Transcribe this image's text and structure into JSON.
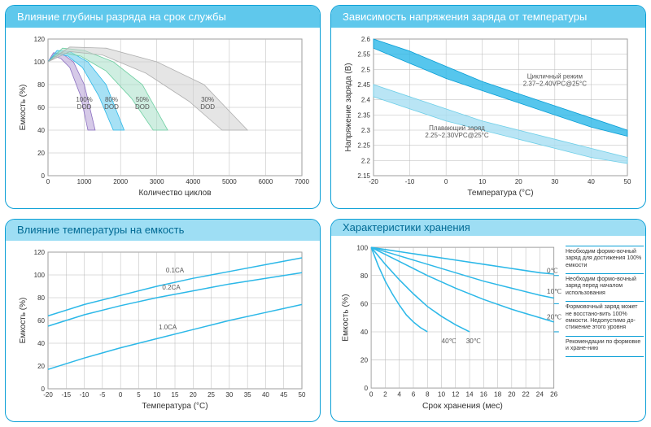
{
  "colors": {
    "accent": "#2cb8e8",
    "header_bg": "#5fc8ec",
    "header_light_bg": "#9edef4",
    "header_text": "#ffffff",
    "header_text_dark": "#006a94",
    "border": "#0a9fd6",
    "grid": "#b8b8b8",
    "axis": "#666666",
    "text": "#333333"
  },
  "chart1": {
    "type": "line",
    "title": "Влияние глубины разряда на срок службы",
    "xlabel": "Количество циклов",
    "ylabel": "Емкость (%)",
    "xlim": [
      0,
      7000
    ],
    "xtick_step": 1000,
    "ylim": [
      0,
      120
    ],
    "ytick_step": 20,
    "title_fontsize": 13,
    "label_fontsize": 10,
    "tick_fontsize": 8,
    "background_color": "#ffffff",
    "grid_color": "#b8b8b8",
    "series": [
      {
        "name": "100% DOD",
        "label": "100%\nDOD",
        "label_x": 1000,
        "label_y": 65,
        "fill": "#b49fd6",
        "fill_opacity": 0.55,
        "stroke": "#8b6fc0",
        "top": [
          [
            0,
            100
          ],
          [
            150,
            108
          ],
          [
            400,
            107
          ],
          [
            700,
            100
          ],
          [
            1000,
            80
          ],
          [
            1300,
            40
          ]
        ],
        "bottom": [
          [
            0,
            100
          ],
          [
            150,
            105
          ],
          [
            350,
            103
          ],
          [
            600,
            95
          ],
          [
            900,
            70
          ],
          [
            1100,
            40
          ]
        ]
      },
      {
        "name": "80% DOD",
        "label": "80%\nDOD",
        "label_x": 1750,
        "label_y": 65,
        "fill": "#5fc8ec",
        "fill_opacity": 0.55,
        "stroke": "#2cb8e8",
        "top": [
          [
            0,
            100
          ],
          [
            250,
            110
          ],
          [
            600,
            109
          ],
          [
            1100,
            100
          ],
          [
            1600,
            80
          ],
          [
            2100,
            40
          ]
        ],
        "bottom": [
          [
            0,
            100
          ],
          [
            250,
            107
          ],
          [
            550,
            105
          ],
          [
            950,
            95
          ],
          [
            1400,
            70
          ],
          [
            1800,
            40
          ]
        ]
      },
      {
        "name": "50% DOD",
        "label": "50%\nDOD",
        "label_x": 2600,
        "label_y": 65,
        "fill": "#a8e0c8",
        "fill_opacity": 0.55,
        "stroke": "#6fcfa2",
        "top": [
          [
            0,
            100
          ],
          [
            400,
            112
          ],
          [
            1000,
            110
          ],
          [
            1800,
            100
          ],
          [
            2600,
            80
          ],
          [
            3300,
            40
          ]
        ],
        "bottom": [
          [
            0,
            100
          ],
          [
            400,
            108
          ],
          [
            900,
            105
          ],
          [
            1600,
            92
          ],
          [
            2300,
            68
          ],
          [
            2900,
            40
          ]
        ]
      },
      {
        "name": "30% DOD",
        "label": "30%\nDOD",
        "label_x": 4400,
        "label_y": 65,
        "fill": "#d0d0d0",
        "fill_opacity": 0.55,
        "stroke": "#b0b0b0",
        "top": [
          [
            0,
            100
          ],
          [
            600,
            113
          ],
          [
            1600,
            112
          ],
          [
            3000,
            100
          ],
          [
            4300,
            80
          ],
          [
            5500,
            40
          ]
        ],
        "bottom": [
          [
            0,
            100
          ],
          [
            600,
            109
          ],
          [
            1500,
            106
          ],
          [
            2700,
            90
          ],
          [
            3900,
            65
          ],
          [
            4800,
            40
          ]
        ]
      }
    ]
  },
  "chart2": {
    "type": "line",
    "title": "Зависимость напряжения заряда от температуры",
    "xlabel": "Температура (°C)",
    "ylabel": "Напряжение заряда (В)",
    "xlim": [
      -20,
      50
    ],
    "xtick_step": 10,
    "ylim": [
      2.15,
      2.6
    ],
    "ytick_step": 0.05,
    "title_fontsize": 13,
    "label_fontsize": 10,
    "tick_fontsize": 8,
    "grid_color": "#b8b8b8",
    "series": [
      {
        "name": "cycle",
        "label": "Цикличный режим\n2.37~2.40VPC@25°C",
        "label_x": 30,
        "label_y": 2.47,
        "fill": "#2cb8e8",
        "fill_opacity": 0.8,
        "stroke": "#0a9fd6",
        "top": [
          [
            -20,
            2.6
          ],
          [
            -10,
            2.56
          ],
          [
            0,
            2.51
          ],
          [
            10,
            2.46
          ],
          [
            20,
            2.42
          ],
          [
            30,
            2.38
          ],
          [
            40,
            2.34
          ],
          [
            50,
            2.3
          ]
        ],
        "bottom": [
          [
            -20,
            2.57
          ],
          [
            -10,
            2.52
          ],
          [
            0,
            2.47
          ],
          [
            10,
            2.43
          ],
          [
            20,
            2.39
          ],
          [
            30,
            2.35
          ],
          [
            40,
            2.31
          ],
          [
            50,
            2.28
          ]
        ]
      },
      {
        "name": "float",
        "label": "Плавающий заряд\n2.25~2.30VPC@25°C",
        "label_x": 3,
        "label_y": 2.3,
        "fill": "#a8dff2",
        "fill_opacity": 0.8,
        "stroke": "#6fcfe8",
        "top": [
          [
            -20,
            2.45
          ],
          [
            -10,
            2.41
          ],
          [
            0,
            2.37
          ],
          [
            10,
            2.33
          ],
          [
            20,
            2.3
          ],
          [
            30,
            2.27
          ],
          [
            40,
            2.24
          ],
          [
            50,
            2.21
          ]
        ],
        "bottom": [
          [
            -20,
            2.41
          ],
          [
            -10,
            2.37
          ],
          [
            0,
            2.33
          ],
          [
            10,
            2.3
          ],
          [
            20,
            2.27
          ],
          [
            30,
            2.24
          ],
          [
            40,
            2.21
          ],
          [
            50,
            2.19
          ]
        ]
      }
    ]
  },
  "chart3": {
    "type": "line",
    "title": "Влияние температуры на емкость",
    "xlabel": "Температура (°C)",
    "ylabel": "Емкость (%)",
    "xlim": [
      -20,
      50
    ],
    "xtick_step": 5,
    "ylim": [
      0,
      120
    ],
    "ytick_step": 20,
    "title_fontsize": 13,
    "label_fontsize": 10,
    "tick_fontsize": 8,
    "grid_color": "#b8b8b8",
    "line_color": "#2cb8e8",
    "line_width": 1.5,
    "series": [
      {
        "name": "0.1CA",
        "label": "0.1CA",
        "label_x": 15,
        "label_y": 102,
        "points": [
          [
            -20,
            64
          ],
          [
            -10,
            74
          ],
          [
            0,
            82
          ],
          [
            10,
            90
          ],
          [
            20,
            97
          ],
          [
            25,
            100
          ],
          [
            30,
            103
          ],
          [
            40,
            109
          ],
          [
            50,
            115
          ]
        ]
      },
      {
        "name": "0.2CA",
        "label": "0.2CA",
        "label_x": 14,
        "label_y": 87,
        "points": [
          [
            -20,
            55
          ],
          [
            -10,
            65
          ],
          [
            0,
            73
          ],
          [
            10,
            80
          ],
          [
            20,
            86
          ],
          [
            25,
            89
          ],
          [
            30,
            92
          ],
          [
            40,
            97
          ],
          [
            50,
            102
          ]
        ]
      },
      {
        "name": "1.0CA",
        "label": "1.0CA",
        "label_x": 13,
        "label_y": 52,
        "points": [
          [
            -20,
            17
          ],
          [
            -10,
            27
          ],
          [
            0,
            36
          ],
          [
            10,
            44
          ],
          [
            20,
            52
          ],
          [
            25,
            56
          ],
          [
            30,
            60
          ],
          [
            40,
            67
          ],
          [
            50,
            74
          ]
        ]
      }
    ]
  },
  "chart4": {
    "type": "line",
    "title": "Характеристики хранения",
    "xlabel": "Срок хранения (мес)",
    "ylabel": "Емкость (%)",
    "xlim": [
      0,
      26
    ],
    "xtick_step": 2,
    "ylim": [
      0,
      100
    ],
    "ytick_step": 20,
    "title_fontsize": 13,
    "label_fontsize": 10,
    "tick_fontsize": 8,
    "grid_color": "#b8b8b8",
    "line_color": "#2cb8e8",
    "line_width": 1.5,
    "thresholds": [
      {
        "value": 80,
        "text": "Необходим формо-вочный заряд для достижения 100% емкости"
      },
      {
        "value": 60,
        "text": "Необходим формо-вочный заряд перед началом использования"
      },
      {
        "value": 40,
        "text": "Формовочный заряд может не восстано-вить 100% емкости. Недопустимо до-стижение этого уровня"
      }
    ],
    "footer": "Рекомендации по формовке и хране-нию",
    "series": [
      {
        "name": "0C",
        "label": "0℃",
        "label_x": 25,
        "label_y": 82,
        "points": [
          [
            0,
            100
          ],
          [
            4,
            97
          ],
          [
            8,
            94
          ],
          [
            12,
            91
          ],
          [
            16,
            88
          ],
          [
            20,
            85
          ],
          [
            24,
            82
          ],
          [
            26,
            81
          ]
        ]
      },
      {
        "name": "10C",
        "label": "10℃",
        "label_x": 25,
        "label_y": 67,
        "points": [
          [
            0,
            100
          ],
          [
            4,
            94
          ],
          [
            8,
            88
          ],
          [
            12,
            82
          ],
          [
            16,
            76
          ],
          [
            20,
            71
          ],
          [
            24,
            66
          ],
          [
            26,
            64
          ]
        ]
      },
      {
        "name": "20C",
        "label": "20℃",
        "label_x": 25,
        "label_y": 49,
        "points": [
          [
            0,
            100
          ],
          [
            4,
            90
          ],
          [
            8,
            80
          ],
          [
            12,
            71
          ],
          [
            16,
            63
          ],
          [
            20,
            56
          ],
          [
            24,
            50
          ],
          [
            26,
            47
          ]
        ]
      },
      {
        "name": "30C",
        "label": "30℃",
        "label_x": 13.5,
        "label_y": 32,
        "points": [
          [
            0,
            100
          ],
          [
            2,
            88
          ],
          [
            4,
            77
          ],
          [
            6,
            67
          ],
          [
            8,
            58
          ],
          [
            10,
            51
          ],
          [
            12,
            45
          ],
          [
            14,
            40
          ]
        ]
      },
      {
        "name": "40C",
        "label": "40℃",
        "label_x": 10,
        "label_y": 32,
        "points": [
          [
            0,
            100
          ],
          [
            1,
            87
          ],
          [
            2,
            76
          ],
          [
            3,
            67
          ],
          [
            4,
            59
          ],
          [
            5,
            52
          ],
          [
            6,
            47
          ],
          [
            7,
            43
          ],
          [
            8,
            40
          ]
        ]
      }
    ]
  }
}
